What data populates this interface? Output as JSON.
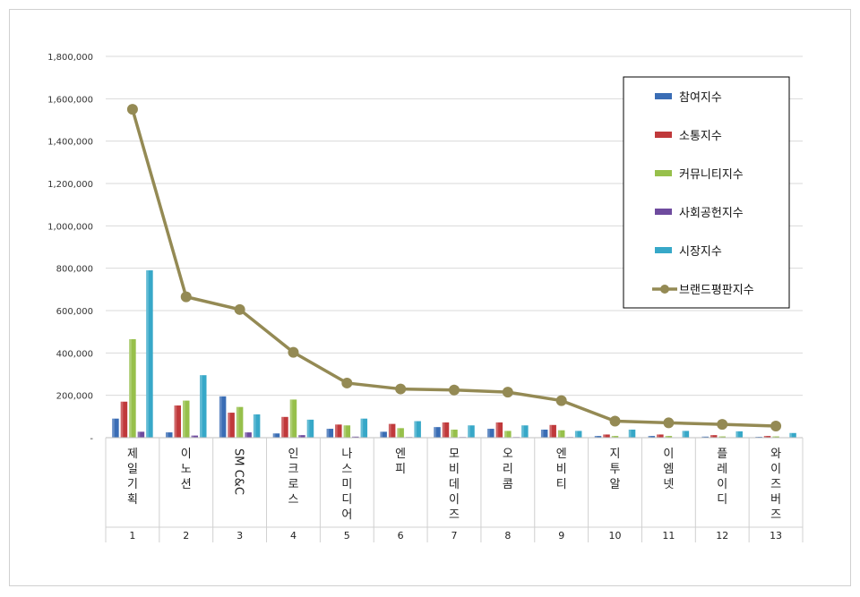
{
  "chart_data": {
    "type": "bar",
    "title": "",
    "xlabel": "",
    "ylabel": "",
    "ylim": [
      0,
      1800000
    ],
    "yticks": [
      "1,800,000",
      "1,600,000",
      "1,400,000",
      "1,200,000",
      "1,000,000",
      "800,000",
      "600,000",
      "400,000",
      "200,000",
      "-"
    ],
    "ytick_values": [
      1800000,
      1600000,
      1400000,
      1200000,
      1000000,
      800000,
      600000,
      400000,
      200000,
      0
    ],
    "categories": [
      "제일기획",
      "이노션",
      "SM C&C",
      "인크로스",
      "나스미디어",
      "엔피",
      "모비데이즈",
      "오리콤",
      "엔비티",
      "지투알",
      "이엠넷",
      "플레이디",
      "와이즈버즈"
    ],
    "ranks": [
      "1",
      "2",
      "3",
      "4",
      "5",
      "6",
      "7",
      "8",
      "9",
      "10",
      "11",
      "12",
      "13"
    ],
    "grid": true,
    "legend_position": "top-right",
    "series": [
      {
        "name": "참여지수",
        "type": "bar",
        "color": "#3a6db5",
        "values": [
          90000,
          25000,
          195000,
          20000,
          42000,
          28000,
          50000,
          42000,
          38000,
          8000,
          8000,
          5000,
          4000
        ]
      },
      {
        "name": "소통지수",
        "type": "bar",
        "color": "#c0393b",
        "values": [
          170000,
          152000,
          118000,
          98000,
          62000,
          65000,
          72000,
          72000,
          60000,
          15000,
          15000,
          12000,
          8000
        ]
      },
      {
        "name": "커뮤니티지수",
        "type": "bar",
        "color": "#97c04b",
        "values": [
          465000,
          175000,
          145000,
          180000,
          58000,
          45000,
          38000,
          32000,
          35000,
          8000,
          8000,
          6000,
          6000
        ]
      },
      {
        "name": "사회공헌지수",
        "type": "bar",
        "color": "#6e4b9e",
        "values": [
          28000,
          10000,
          25000,
          12000,
          5000,
          3000,
          3000,
          3000,
          3000,
          2000,
          2000,
          2000,
          2000
        ]
      },
      {
        "name": "시장지수",
        "type": "bar",
        "color": "#37a8c8",
        "values": [
          790000,
          295000,
          110000,
          85000,
          90000,
          78000,
          58000,
          58000,
          32000,
          38000,
          32000,
          30000,
          22000
        ]
      },
      {
        "name": "브랜드평판지수",
        "type": "line",
        "color": "#948a54",
        "values": [
          1550000,
          665000,
          605000,
          403000,
          258000,
          230000,
          225000,
          215000,
          175000,
          78000,
          70000,
          63000,
          55000
        ]
      }
    ]
  }
}
